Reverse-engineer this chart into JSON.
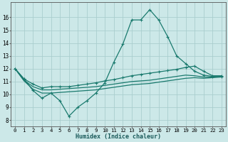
{
  "xlabel": "Humidex (Indice chaleur)",
  "bg_color": "#cce8e8",
  "grid_color": "#aacece",
  "line_color": "#1a7a6e",
  "xlim": [
    -0.5,
    23.5
  ],
  "ylim": [
    7.5,
    17.2
  ],
  "xticks": [
    0,
    1,
    2,
    3,
    4,
    5,
    6,
    7,
    8,
    9,
    10,
    11,
    12,
    13,
    14,
    15,
    16,
    17,
    18,
    19,
    20,
    21,
    22,
    23
  ],
  "yticks": [
    8,
    9,
    10,
    11,
    12,
    13,
    14,
    15,
    16
  ],
  "series1_x": [
    0,
    1,
    2,
    3,
    4,
    5,
    6,
    7,
    8,
    9,
    10,
    11,
    12,
    13,
    14,
    15,
    16,
    17,
    18,
    19,
    20,
    21,
    22,
    23
  ],
  "series1_y": [
    12.0,
    11.2,
    10.3,
    9.7,
    10.1,
    9.5,
    8.3,
    9.0,
    9.5,
    10.1,
    10.9,
    12.5,
    13.9,
    15.8,
    15.8,
    16.6,
    15.8,
    14.5,
    13.0,
    12.4,
    11.8,
    11.5,
    11.4,
    11.4
  ],
  "series2_x": [
    0,
    1,
    2,
    3,
    4,
    5,
    6,
    7,
    8,
    9,
    10,
    11,
    12,
    13,
    14,
    15,
    16,
    17,
    18,
    19,
    20,
    21,
    22,
    23
  ],
  "series2_y": [
    12.0,
    11.2,
    10.8,
    10.5,
    10.6,
    10.6,
    10.6,
    10.7,
    10.8,
    10.9,
    11.05,
    11.15,
    11.3,
    11.45,
    11.55,
    11.65,
    11.75,
    11.85,
    11.95,
    12.1,
    12.2,
    11.8,
    11.45,
    11.45
  ],
  "series3_x": [
    0,
    1,
    2,
    3,
    4,
    5,
    6,
    7,
    8,
    9,
    10,
    11,
    12,
    13,
    14,
    15,
    16,
    17,
    18,
    19,
    20,
    21,
    22,
    23
  ],
  "series3_y": [
    12.0,
    11.1,
    10.6,
    10.35,
    10.35,
    10.4,
    10.45,
    10.5,
    10.55,
    10.6,
    10.7,
    10.8,
    10.9,
    11.0,
    11.05,
    11.1,
    11.2,
    11.3,
    11.4,
    11.5,
    11.45,
    11.35,
    11.35,
    11.4
  ],
  "series4_x": [
    0,
    1,
    2,
    3,
    4,
    5,
    6,
    7,
    8,
    9,
    10,
    11,
    12,
    13,
    14,
    15,
    16,
    17,
    18,
    19,
    20,
    21,
    22,
    23
  ],
  "series4_y": [
    12.0,
    11.05,
    10.4,
    10.1,
    10.1,
    10.15,
    10.2,
    10.25,
    10.3,
    10.35,
    10.45,
    10.55,
    10.65,
    10.75,
    10.8,
    10.85,
    10.95,
    11.05,
    11.15,
    11.25,
    11.3,
    11.25,
    11.3,
    11.35
  ]
}
